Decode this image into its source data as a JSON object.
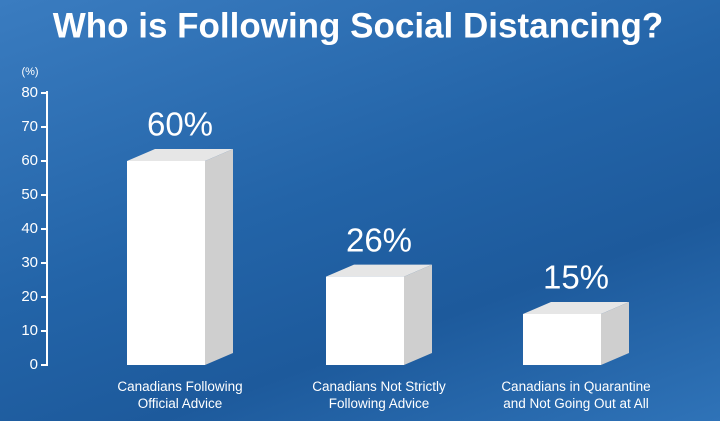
{
  "chart_data": {
    "type": "bar3d",
    "title": "Who is Following Social Distancing?",
    "y_label": "(%)",
    "categories": [
      "Canadians Following Official Advice",
      "Canadians Not Strictly Following Advice",
      "Canadians in Quarantine and Not Going Out at All"
    ],
    "values": [
      60,
      26,
      15
    ],
    "value_labels": [
      "60%",
      "26%",
      "15%"
    ],
    "color": "#ffffff",
    "ylim": [
      0,
      80
    ],
    "yticks": [
      0,
      10,
      20,
      30,
      40,
      50,
      60,
      70,
      80
    ]
  }
}
